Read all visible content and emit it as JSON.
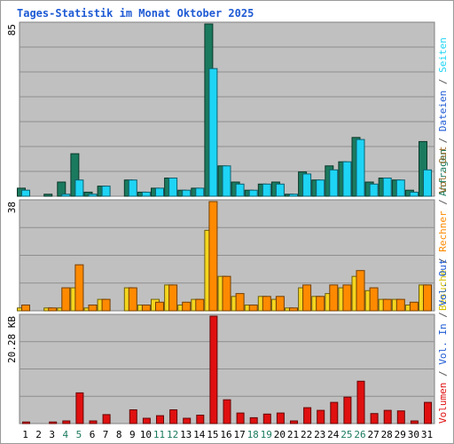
{
  "chart_data": {
    "type": "bar",
    "title": "Tages-Statistik im Monat Oktober 2025",
    "categories": [
      "1",
      "2",
      "3",
      "4",
      "5",
      "6",
      "7",
      "8",
      "9",
      "10",
      "11",
      "12",
      "13",
      "14",
      "15",
      "16",
      "17",
      "18",
      "19",
      "20",
      "21",
      "22",
      "23",
      "24",
      "25",
      "26",
      "27",
      "28",
      "29",
      "30",
      "31"
    ],
    "weekend_days": [
      "4",
      "5",
      "11",
      "12",
      "18",
      "19",
      "25",
      "26"
    ],
    "panels": [
      {
        "id": "anfragen",
        "ymax_label": "85",
        "ymax": 85,
        "series": [
          {
            "name": "Anfragen",
            "color": "#1a7a5e",
            "values": [
              4,
              0,
              1,
              7,
              21,
              2,
              5,
              0,
              8,
              2,
              4,
              9,
              3,
              4,
              85,
              15,
              7,
              3,
              6,
              7,
              1,
              12,
              8,
              15,
              17,
              29,
              7,
              9,
              8,
              3,
              27
            ]
          },
          {
            "name": "Seiten",
            "color": "#1ed4f5",
            "values": [
              3,
              0,
              0,
              1,
              8,
              1,
              5,
              0,
              8,
              2,
              4,
              9,
              3,
              4,
              63,
              15,
              6,
              3,
              6,
              6,
              1,
              11,
              8,
              13,
              17,
              28,
              6,
              9,
              8,
              2,
              13
            ]
          }
        ],
        "legend_right": [
          "Anfragen",
          "/",
          "Dateien",
          "/",
          "Seiten"
        ],
        "legend_colors": [
          "#1a7a5e",
          "#555555",
          "#1e5ad4",
          "#555555",
          "#1ed4f5"
        ]
      },
      {
        "id": "besuche",
        "ymax_label": "38",
        "ymax": 38,
        "series": [
          {
            "name": "Besuche",
            "color": "#f5d61e",
            "values": [
              1,
              0,
              1,
              1,
              8,
              1,
              4,
              0,
              8,
              2,
              4,
              9,
              2,
              4,
              28,
              12,
              5,
              2,
              5,
              4,
              1,
              8,
              5,
              6,
              8,
              12,
              7,
              4,
              4,
              2,
              9
            ]
          },
          {
            "name": "Rechner",
            "color": "#ff8a00",
            "values": [
              2,
              0,
              1,
              8,
              16,
              2,
              4,
              0,
              8,
              2,
              3,
              9,
              3,
              4,
              38,
              12,
              6,
              2,
              5,
              5,
              1,
              9,
              5,
              9,
              9,
              14,
              8,
              4,
              4,
              3,
              9
            ]
          }
        ],
        "legend_right": [
          "Besuche",
          "/",
          "Rechner",
          "/",
          "Vol. Out"
        ],
        "legend_colors": [
          "#d4c000",
          "#555555",
          "#ff8a00",
          "#555555",
          "#9a6a2a"
        ]
      },
      {
        "id": "volumen",
        "ymax_label": "20.28 KB",
        "ymax": 20.28,
        "series": [
          {
            "name": "Volumen",
            "color": "#e01010",
            "values": [
              0.3,
              0,
              0.3,
              0.5,
              5.8,
              0.5,
              1.7,
              0,
              2.6,
              1.0,
              1.5,
              2.6,
              1.0,
              1.6,
              20.28,
              4.5,
              2.0,
              1.1,
              1.8,
              2.0,
              0.5,
              3.0,
              2.5,
              4.0,
              5.0,
              8.0,
              1.9,
              2.5,
              2.4,
              0.5,
              4.0
            ]
          }
        ],
        "legend_right": [
          "Volumen",
          "/",
          "Vol. In",
          "/",
          "Vol. Out"
        ],
        "legend_colors": [
          "#e01010",
          "#555555",
          "#1e5ad4",
          "#555555",
          "#1e5ad4"
        ]
      }
    ],
    "grid": true,
    "colors": {
      "plot_bg": "#c0c0c0",
      "frame": "#808080",
      "title": "#1e5ad4",
      "day_label": "#000000",
      "weekend_label": "#1a7a5e"
    }
  }
}
